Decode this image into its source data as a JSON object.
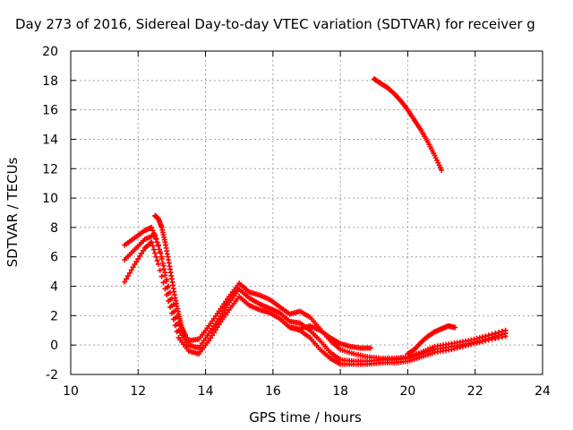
{
  "chart_data": {
    "type": "scatter",
    "title": "Day 273 of 2016, Sidereal Day-to-day VTEC variation (SDTVAR) for receiver g",
    "xlabel": "GPS time / hours",
    "ylabel": "SDTVAR / TECUs",
    "xlim": [
      10,
      24
    ],
    "ylim": [
      -2,
      20
    ],
    "xticks": [
      "10",
      "12",
      "14",
      "16",
      "18",
      "20",
      "22",
      "24"
    ],
    "yticks": [
      "-2",
      "0",
      "2",
      "4",
      "6",
      "8",
      "10",
      "12",
      "14",
      "16",
      "18",
      "20"
    ],
    "grid": true,
    "marker": "+",
    "color": "#ff0000",
    "series": [
      {
        "x": [
          11.6,
          11.9,
          12.2,
          12.4,
          12.6,
          12.9,
          13.2,
          13.5,
          13.8,
          14.1,
          14.4,
          14.7,
          15.0,
          15.3,
          15.6,
          15.9,
          16.2,
          16.5,
          16.8,
          17.1,
          17.4,
          17.7,
          18.0,
          18.4,
          18.8,
          19.2,
          19.6,
          20.0,
          20.4,
          20.8,
          21.3,
          21.8,
          22.3,
          22.9
        ],
        "y": [
          6.8,
          7.3,
          7.8,
          8.0,
          6.8,
          4.0,
          1.5,
          0.3,
          0.4,
          1.3,
          2.3,
          3.3,
          4.2,
          3.6,
          3.4,
          3.1,
          2.6,
          2.1,
          2.3,
          1.9,
          1.1,
          0.3,
          -0.3,
          -0.6,
          -0.8,
          -0.9,
          -0.9,
          -0.8,
          -0.5,
          -0.1,
          0.1,
          0.3,
          0.6,
          1.0
        ]
      },
      {
        "x": [
          11.6,
          11.9,
          12.2,
          12.5,
          12.7,
          12.9,
          13.2,
          13.5,
          13.8,
          14.1,
          14.4,
          14.7,
          15.0,
          15.3,
          15.6,
          15.9,
          16.2,
          16.5,
          16.8,
          17.1,
          17.4,
          17.7,
          18.0,
          18.4,
          18.8,
          19.2,
          19.6,
          20.0,
          20.4,
          20.8,
          21.3,
          21.8,
          22.3,
          22.9
        ],
        "y": [
          5.8,
          6.5,
          7.2,
          7.5,
          6.0,
          3.5,
          1.0,
          0.0,
          -0.2,
          0.8,
          1.8,
          2.9,
          3.8,
          3.2,
          2.8,
          2.5,
          2.2,
          1.6,
          1.5,
          1.0,
          0.3,
          -0.5,
          -1.0,
          -1.1,
          -1.1,
          -1.0,
          -1.0,
          -0.9,
          -0.6,
          -0.3,
          -0.1,
          0.1,
          0.4,
          0.8
        ]
      },
      {
        "x": [
          11.6,
          11.9,
          12.2,
          12.4,
          12.6,
          12.9,
          13.2,
          13.5,
          13.8,
          14.1,
          14.4,
          14.7,
          15.0,
          15.3,
          15.6,
          15.9,
          16.2,
          16.5,
          16.8,
          17.1,
          17.4,
          17.7,
          18.0,
          18.4,
          18.8,
          19.2,
          19.6,
          20.0,
          20.4,
          20.8,
          21.3,
          21.8,
          22.3,
          22.9
        ],
        "y": [
          4.3,
          5.5,
          6.6,
          7.0,
          5.5,
          3.0,
          0.5,
          -0.4,
          -0.6,
          0.3,
          1.4,
          2.4,
          3.3,
          2.7,
          2.4,
          2.2,
          1.8,
          1.2,
          1.0,
          0.5,
          -0.3,
          -0.9,
          -1.3,
          -1.3,
          -1.3,
          -1.2,
          -1.2,
          -1.1,
          -0.8,
          -0.5,
          -0.3,
          0.0,
          0.3,
          0.6
        ]
      },
      {
        "x": [
          12.5,
          12.6,
          12.7,
          12.8,
          12.9,
          13.0,
          13.1,
          13.2,
          13.3,
          13.4
        ],
        "y": [
          8.8,
          8.6,
          8.0,
          7.0,
          5.8,
          4.5,
          3.2,
          2.1,
          1.2,
          0.6
        ]
      },
      {
        "x": [
          16.5,
          16.8,
          17.1,
          17.4,
          17.7,
          18.0,
          18.3,
          18.6,
          18.9
        ],
        "y": [
          1.2,
          1.1,
          1.3,
          1.0,
          0.5,
          0.1,
          -0.1,
          -0.2,
          -0.2
        ]
      },
      {
        "x": [
          20.0,
          20.2,
          20.4,
          20.6,
          20.8,
          21.0,
          21.2,
          21.4
        ],
        "y": [
          -0.6,
          -0.3,
          0.2,
          0.6,
          0.9,
          1.1,
          1.3,
          1.2
        ]
      },
      {
        "x": [
          19.0,
          19.2,
          19.4,
          19.6,
          19.8,
          20.0,
          20.2,
          20.4,
          20.6,
          20.8,
          21.0
        ],
        "y": [
          18.1,
          17.8,
          17.5,
          17.1,
          16.6,
          16.0,
          15.3,
          14.6,
          13.8,
          12.9,
          11.9
        ]
      }
    ]
  }
}
